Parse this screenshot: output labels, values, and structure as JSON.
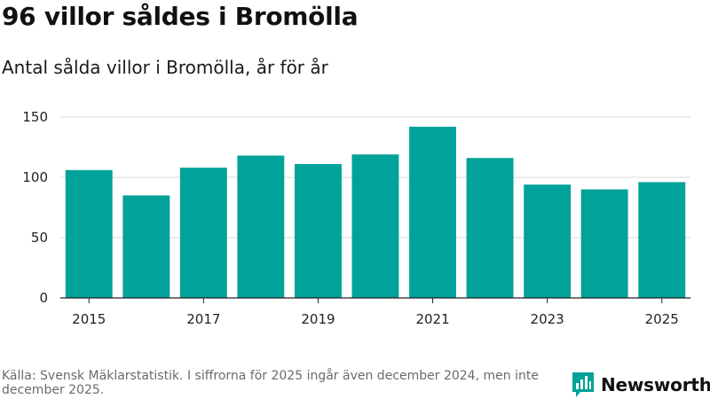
{
  "header": {
    "title": "96 villor såldes i Bromölla",
    "subtitle": "Antal sålda villor i Bromölla, år för år"
  },
  "chart_data": {
    "type": "bar",
    "title": "96 villor såldes i Bromölla",
    "subtitle": "Antal sålda villor i Bromölla, år för år",
    "xlabel": "",
    "ylabel": "",
    "categories": [
      "2015",
      "2016",
      "2017",
      "2018",
      "2019",
      "2020",
      "2021",
      "2022",
      "2023",
      "2024",
      "2025"
    ],
    "values": [
      106,
      85,
      108,
      118,
      111,
      119,
      142,
      116,
      94,
      90,
      96
    ],
    "ylim": [
      0,
      150
    ],
    "yticks": [
      "0",
      "50",
      "100",
      "150"
    ],
    "xticks": [
      "2015",
      "2017",
      "2019",
      "2021",
      "2023",
      "2025"
    ],
    "grid": true,
    "bar_color": "#00a29a"
  },
  "footer": {
    "source": "Källa: Svensk Mäklarstatistik. I siffrorna för 2025 ingår även december 2024, men inte december 2025.",
    "brand": "Newsworthy",
    "brand_color": "#00a29a",
    "logo_icon": "bar-chart-icon"
  }
}
